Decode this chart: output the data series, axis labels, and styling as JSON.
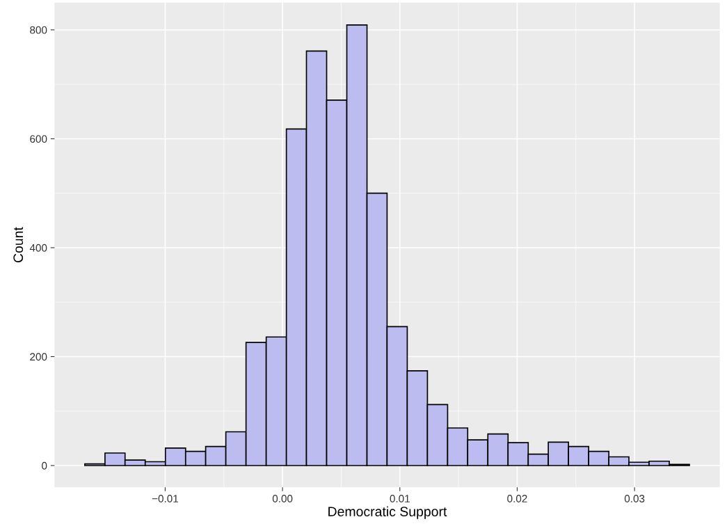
{
  "chart_data": {
    "type": "histogram",
    "xlabel": "Democratic Support",
    "ylabel": "Count",
    "bins": [
      -0.01685,
      -0.01513,
      -0.01342,
      -0.0117,
      -0.00998,
      -0.00826,
      -0.00655,
      -0.00483,
      -0.00311,
      -0.00139,
      0.00033,
      0.00204,
      0.00376,
      0.00548,
      0.0072,
      0.00891,
      0.01063,
      0.01235,
      0.01407,
      0.01578,
      0.0175,
      0.01922,
      0.02094,
      0.02265,
      0.02437,
      0.02609,
      0.02781,
      0.02952,
      0.03124,
      0.03296,
      0.03468
    ],
    "values": [
      3,
      23,
      10,
      7,
      32,
      26,
      35,
      62,
      226,
      236,
      618,
      761,
      671,
      809,
      500,
      255,
      174,
      112,
      69,
      47,
      58,
      42,
      21,
      43,
      35,
      26,
      16,
      6,
      8,
      2
    ],
    "color": "#bcbcf0",
    "xlim": [
      -0.01943,
      0.03726
    ],
    "xticks": [
      {
        "value": -0.01,
        "label": "−0.01"
      },
      {
        "value": 0,
        "label": "0.00"
      },
      {
        "value": 0.01,
        "label": "0.01"
      },
      {
        "value": 0.02,
        "label": "0.02"
      },
      {
        "value": 0.03,
        "label": "0.03"
      }
    ],
    "ylim": [
      -40,
      850
    ],
    "yticks": [
      0,
      200,
      400,
      600,
      800
    ],
    "grid": true
  }
}
